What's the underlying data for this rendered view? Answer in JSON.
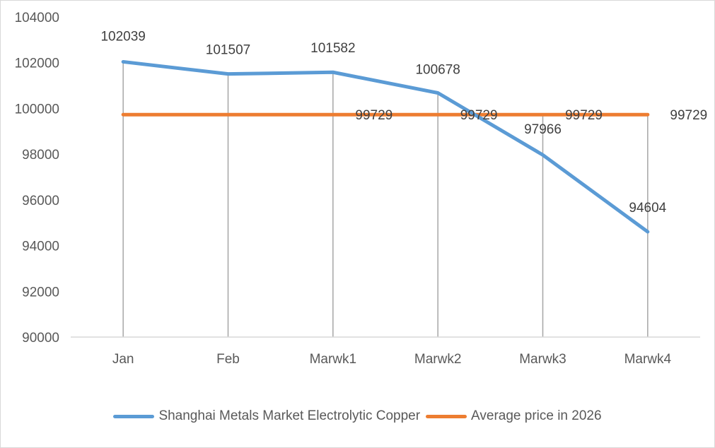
{
  "chart_data": {
    "type": "line",
    "title": "",
    "xlabel": "",
    "ylabel": "",
    "categories": [
      "Jan",
      "Feb",
      "Marwk1",
      "Marwk2",
      "Marwk3",
      "Marwk4"
    ],
    "series": [
      {
        "name": "Shanghai Metals Market Electrolytic Copper",
        "color": "#5b9bd5",
        "values": [
          102039,
          101507,
          101582,
          100678,
          97966,
          94604
        ]
      },
      {
        "name": "Average price in 2026",
        "color": "#ed7d31",
        "values": [
          99729,
          99729,
          99729,
          99729,
          99729,
          99729
        ]
      }
    ],
    "ylim": [
      90000,
      104000
    ],
    "yticks": [
      90000,
      92000,
      94000,
      96000,
      98000,
      100000,
      102000,
      104000
    ],
    "grid": "vertical drop lines at each category",
    "legend_position": "bottom",
    "data_labels": {
      "series_1": [
        "102039",
        "101507",
        "101582",
        "100678",
        "97966",
        "94604"
      ],
      "series_2_visible": [
        "99729",
        "99729",
        "99729",
        "99729"
      ]
    }
  },
  "legend": {
    "items": [
      {
        "label": "Shanghai Metals Market Electrolytic Copper",
        "color": "#5b9bd5"
      },
      {
        "label": "Average price in 2026",
        "color": "#ed7d31"
      }
    ]
  }
}
